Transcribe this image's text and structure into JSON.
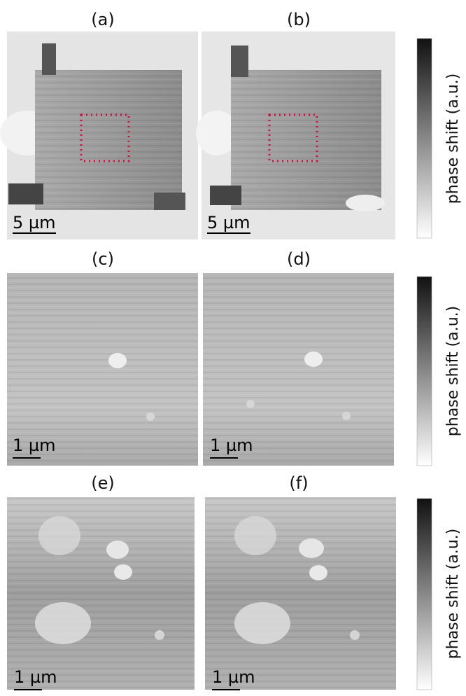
{
  "panels": [
    {
      "label": "(a)",
      "scale_bar": "5 µm"
    },
    {
      "label": "(b)",
      "scale_bar": "5 µm"
    },
    {
      "label": "(c)",
      "scale_bar": "1 µm"
    },
    {
      "label": "(d)",
      "scale_bar": "1 µm"
    },
    {
      "label": "(e)",
      "scale_bar": "1 µm"
    },
    {
      "label": "(f)",
      "scale_bar": "1 µm"
    }
  ],
  "colorbars": [
    {
      "label": "phase shift (a.u.)"
    },
    {
      "label": "phase shift (a.u.)"
    },
    {
      "label": "phase shift (a.u.)"
    }
  ]
}
